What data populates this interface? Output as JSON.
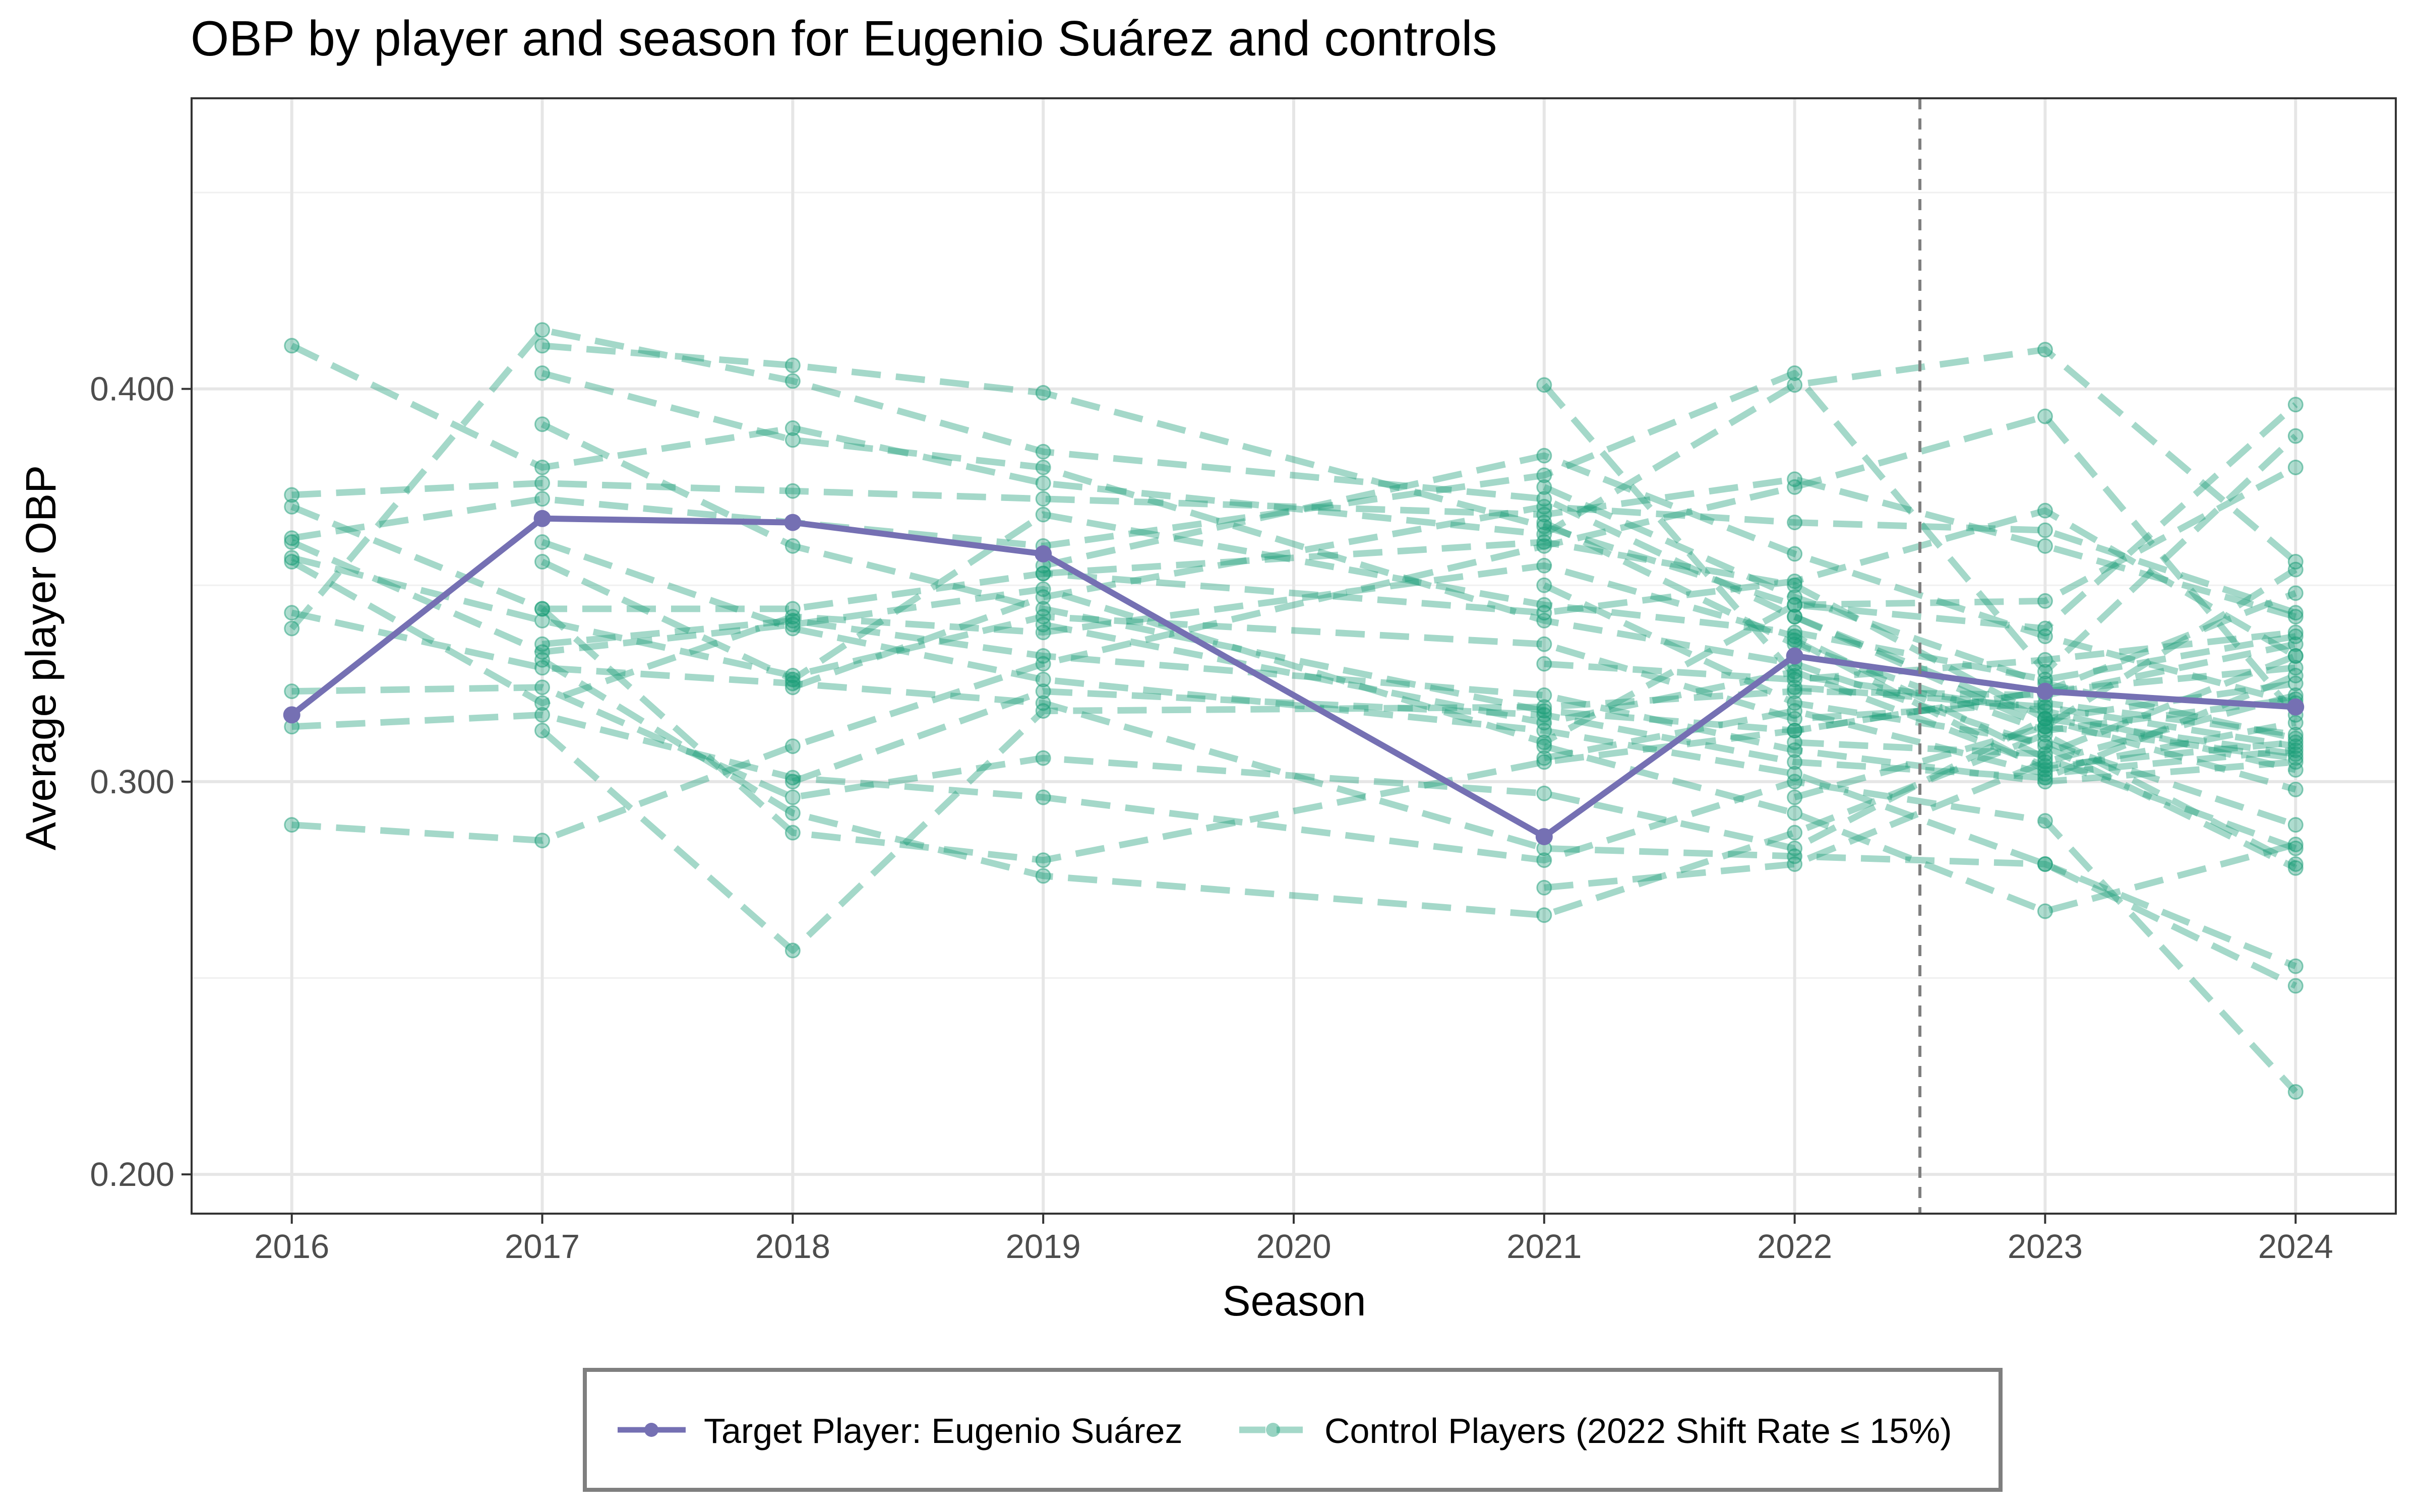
{
  "chart_data": {
    "type": "line",
    "title": "OBP by player and season for Eugenio Suárez and controls",
    "xlabel": "Season",
    "ylabel": "Average player OBP",
    "x": [
      2016,
      2017,
      2018,
      2019,
      2020,
      2021,
      2022,
      2023,
      2024
    ],
    "xlim": [
      2015.6,
      2024.4
    ],
    "ylim": [
      0.19,
      0.474
    ],
    "yticks": [
      0.2,
      0.3,
      0.4
    ],
    "ytick_labels": [
      "0.200",
      "0.300",
      "0.400"
    ],
    "grid": true,
    "vline_x": 2022.5,
    "legend_position": "bottom",
    "colors": {
      "target": "#7570b3",
      "control": "#1b9e77",
      "vline": "#7f7f7f"
    },
    "series": [
      {
        "name": "Target Player: Eugenio Suárez",
        "role": "target",
        "points": [
          [
            2016,
            0.317
          ],
          [
            2017,
            0.367
          ],
          [
            2018,
            0.366
          ],
          [
            2019,
            0.358
          ],
          [
            2021,
            0.286
          ],
          [
            2022,
            0.332
          ],
          [
            2023,
            0.323
          ],
          [
            2024,
            0.319
          ]
        ]
      },
      {
        "name": "Control Players (2022 Shift Rate ≤ 15%)",
        "role": "control",
        "lines": [
          [
            [
              2016,
              0.411
            ],
            [
              2017,
              0.38
            ],
            [
              2018,
              0.39
            ],
            [
              2019,
              0.376
            ],
            [
              2021,
              0.363
            ],
            [
              2022,
              0.401
            ],
            [
              2023,
              0.41
            ],
            [
              2024,
              0.356
            ]
          ],
          [
            [
              2016,
              0.373
            ],
            [
              2017,
              0.376
            ],
            [
              2018,
              0.374
            ],
            [
              2019,
              0.372
            ],
            [
              2021,
              0.368
            ],
            [
              2022,
              0.377
            ],
            [
              2023,
              0.36
            ],
            [
              2024,
              0.342
            ]
          ],
          [
            [
              2016,
              0.37
            ],
            [
              2017,
              0.344
            ],
            [
              2018,
              0.344
            ],
            [
              2019,
              0.353
            ],
            [
              2021,
              0.343
            ],
            [
              2022,
              0.351
            ],
            [
              2023,
              0.369
            ],
            [
              2024,
              0.332
            ]
          ],
          [
            [
              2016,
              0.362
            ],
            [
              2017,
              0.372
            ],
            [
              2018,
              0.366
            ],
            [
              2019,
              0.36
            ],
            [
              2021,
              0.378
            ],
            [
              2022,
              0.404
            ],
            [
              2023,
              0.328
            ],
            [
              2024,
              0.388
            ]
          ],
          [
            [
              2016,
              0.361
            ],
            [
              2017,
              0.333
            ],
            [
              2018,
              0.34
            ],
            [
              2019,
              0.349
            ],
            [
              2021,
              0.31
            ],
            [
              2022,
              0.345
            ],
            [
              2023,
              0.339
            ],
            [
              2024,
              0.396
            ]
          ],
          [
            [
              2016,
              0.357
            ],
            [
              2017,
              0.341
            ],
            [
              2018,
              0.327
            ],
            [
              2019,
              0.342
            ],
            [
              2021,
              0.335
            ],
            [
              2022,
              0.316
            ],
            [
              2023,
              0.32
            ],
            [
              2024,
              0.312
            ]
          ],
          [
            [
              2016,
              0.356
            ],
            [
              2017,
              0.32
            ],
            [
              2018,
              0.342
            ],
            [
              2019,
              0.338
            ],
            [
              2021,
              0.355
            ],
            [
              2022,
              0.337
            ],
            [
              2023,
              0.306
            ],
            [
              2024,
              0.283
            ]
          ],
          [
            [
              2016,
              0.343
            ],
            [
              2017,
              0.329
            ],
            [
              2018,
              0.325
            ],
            [
              2019,
              0.32
            ],
            [
              2021,
              0.283
            ],
            [
              2022,
              0.281
            ],
            [
              2023,
              0.279
            ],
            [
              2024,
              0.253
            ]
          ],
          [
            [
              2016,
              0.339
            ],
            [
              2017,
              0.415
            ],
            [
              2018,
              0.402
            ],
            [
              2019,
              0.384
            ],
            [
              2021,
              0.372
            ],
            [
              2022,
              0.342
            ],
            [
              2023,
              0.316
            ],
            [
              2024,
              0.325
            ]
          ],
          [
            [
              2016,
              0.323
            ],
            [
              2017,
              0.324
            ],
            [
              2018,
              0.296
            ],
            [
              2019,
              0.306
            ],
            [
              2021,
              0.297
            ],
            [
              2022,
              0.283
            ],
            [
              2023,
              0.316
            ],
            [
              2024,
              0.307
            ]
          ],
          [
            [
              2016,
              0.314
            ],
            [
              2017,
              0.317
            ],
            [
              2018,
              0.301
            ],
            [
              2019,
              0.296
            ],
            [
              2021,
              0.28
            ],
            [
              2022,
              0.3
            ],
            [
              2023,
              0.29
            ],
            [
              2024,
              0.221
            ]
          ],
          [
            [
              2016,
              0.289
            ],
            [
              2017,
              0.285
            ],
            [
              2018,
              0.309
            ],
            [
              2019,
              0.33
            ],
            [
              2021,
              0.36
            ],
            [
              2022,
              0.375
            ],
            [
              2023,
              0.393
            ],
            [
              2024,
              0.317
            ]
          ],
          [
            [
              2017,
              0.411
            ],
            [
              2018,
              0.406
            ],
            [
              2019,
              0.399
            ],
            [
              2021,
              0.365
            ],
            [
              2022,
              0.345
            ],
            [
              2023,
              0.346
            ],
            [
              2024,
              0.38
            ]
          ],
          [
            [
              2017,
              0.404
            ],
            [
              2018,
              0.387
            ],
            [
              2019,
              0.38
            ],
            [
              2021,
              0.341
            ],
            [
              2022,
              0.33
            ],
            [
              2023,
              0.309
            ],
            [
              2024,
              0.278
            ]
          ],
          [
            [
              2017,
              0.391
            ],
            [
              2018,
              0.36
            ],
            [
              2019,
              0.344
            ],
            [
              2021,
              0.318
            ],
            [
              2022,
              0.313
            ],
            [
              2023,
              0.323
            ],
            [
              2024,
              0.329
            ]
          ],
          [
            [
              2017,
              0.361
            ],
            [
              2018,
              0.339
            ],
            [
              2019,
              0.326
            ],
            [
              2021,
              0.313
            ],
            [
              2022,
              0.302
            ],
            [
              2023,
              0.279
            ],
            [
              2024,
              0.248
            ]
          ],
          [
            [
              2017,
              0.356
            ],
            [
              2018,
              0.326
            ],
            [
              2019,
              0.368
            ],
            [
              2021,
              0.345
            ],
            [
              2022,
              0.338
            ],
            [
              2023,
              0.326
            ],
            [
              2024,
              0.337
            ]
          ],
          [
            [
              2017,
              0.344
            ],
            [
              2018,
              0.287
            ],
            [
              2019,
              0.28
            ],
            [
              2021,
              0.305
            ],
            [
              2022,
              0.313
            ],
            [
              2023,
              0.323
            ],
            [
              2024,
              0.348
            ]
          ],
          [
            [
              2017,
              0.335
            ],
            [
              2018,
              0.341
            ],
            [
              2019,
              0.332
            ],
            [
              2021,
              0.322
            ],
            [
              2022,
              0.308
            ],
            [
              2023,
              0.3
            ],
            [
              2024,
              0.305
            ]
          ],
          [
            [
              2017,
              0.331
            ],
            [
              2018,
              0.292
            ],
            [
              2019,
              0.276
            ],
            [
              2021,
              0.266
            ],
            [
              2022,
              0.287
            ],
            [
              2023,
              0.312
            ],
            [
              2024,
              0.279
            ]
          ],
          [
            [
              2017,
              0.313
            ],
            [
              2018,
              0.257
            ],
            [
              2019,
              0.318
            ],
            [
              2021,
              0.319
            ],
            [
              2022,
              0.323
            ],
            [
              2023,
              0.322
            ],
            [
              2024,
              0.335
            ]
          ],
          [
            [
              2018,
              0.324
            ],
            [
              2019,
              0.347
            ],
            [
              2021,
              0.37
            ],
            [
              2022,
              0.366
            ],
            [
              2023,
              0.364
            ],
            [
              2024,
              0.343
            ]
          ],
          [
            [
              2018,
              0.3
            ],
            [
              2019,
              0.323
            ],
            [
              2021,
              0.317
            ],
            [
              2022,
              0.305
            ],
            [
              2023,
              0.301
            ],
            [
              2024,
              0.327
            ]
          ],
          [
            [
              2019,
              0.355
            ],
            [
              2021,
              0.383
            ],
            [
              2022,
              0.358
            ],
            [
              2023,
              0.337
            ],
            [
              2024,
              0.32
            ]
          ],
          [
            [
              2019,
              0.353
            ],
            [
              2021,
              0.361
            ],
            [
              2022,
              0.35
            ],
            [
              2023,
              0.316
            ],
            [
              2024,
              0.298
            ]
          ],
          [
            [
              2019,
              0.34
            ],
            [
              2021,
              0.315
            ],
            [
              2022,
              0.328
            ],
            [
              2023,
              0.304
            ],
            [
              2024,
              0.31
            ]
          ],
          [
            [
              2021,
              0.401
            ],
            [
              2022,
              0.327
            ],
            [
              2023,
              0.318
            ],
            [
              2024,
              0.303
            ]
          ],
          [
            [
              2021,
              0.375
            ],
            [
              2022,
              0.347
            ],
            [
              2023,
              0.325
            ],
            [
              2024,
              0.311
            ]
          ],
          [
            [
              2021,
              0.366
            ],
            [
              2022,
              0.335
            ],
            [
              2023,
              0.313
            ],
            [
              2024,
              0.321
            ]
          ],
          [
            [
              2021,
              0.35
            ],
            [
              2022,
              0.32
            ],
            [
              2023,
              0.31
            ],
            [
              2024,
              0.289
            ]
          ],
          [
            [
              2021,
              0.33
            ],
            [
              2022,
              0.326
            ],
            [
              2023,
              0.331
            ],
            [
              2024,
              0.338
            ]
          ],
          [
            [
              2021,
              0.309
            ],
            [
              2022,
              0.292
            ],
            [
              2023,
              0.267
            ],
            [
              2024,
              0.284
            ]
          ],
          [
            [
              2021,
              0.306
            ],
            [
              2022,
              0.318
            ],
            [
              2023,
              0.302
            ],
            [
              2024,
              0.308
            ]
          ],
          [
            [
              2021,
              0.273
            ],
            [
              2022,
              0.279
            ],
            [
              2023,
              0.305
            ],
            [
              2024,
              0.322
            ]
          ],
          [
            [
              2022,
              0.342
            ],
            [
              2023,
              0.314
            ],
            [
              2024,
              0.306
            ]
          ],
          [
            [
              2022,
              0.336
            ],
            [
              2023,
              0.303
            ],
            [
              2024,
              0.315
            ]
          ],
          [
            [
              2022,
              0.324
            ],
            [
              2023,
              0.319
            ],
            [
              2024,
              0.309
            ]
          ],
          [
            [
              2022,
              0.31
            ],
            [
              2023,
              0.307
            ],
            [
              2024,
              0.332
            ]
          ],
          [
            [
              2022,
              0.296
            ],
            [
              2023,
              0.314
            ],
            [
              2024,
              0.354
            ]
          ]
        ]
      }
    ]
  }
}
